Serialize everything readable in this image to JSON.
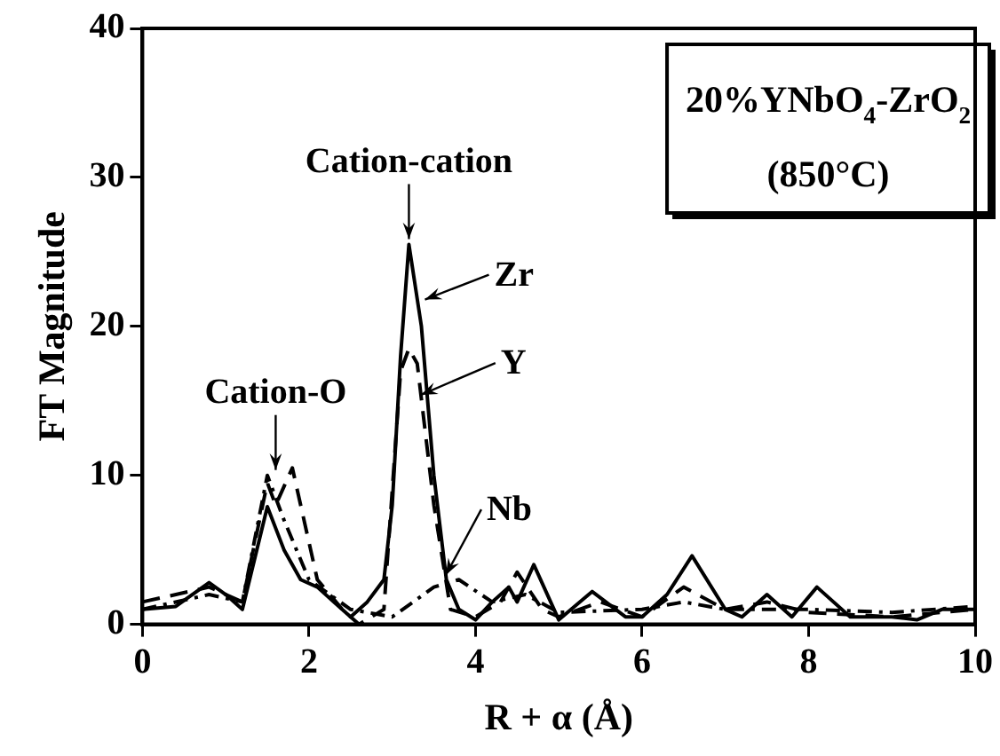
{
  "chart_data": {
    "type": "line",
    "title": "20%YNbO$_{4}$-ZrO$_{2}$",
    "subtitle": "(850°C)",
    "xlabel": "R + α (Å)",
    "ylabel": "FT Magnitude",
    "xlim": [
      0,
      10
    ],
    "xticks": [
      0,
      2,
      4,
      6,
      8,
      10
    ],
    "ylim": [
      0,
      40
    ],
    "yticks": [
      0,
      10,
      20,
      30,
      40
    ],
    "grid": false,
    "legend": false,
    "marker": "none",
    "series": [
      {
        "color": "#000000",
        "line_style": "solid",
        "x": [
          0,
          0.4,
          0.8,
          1.0,
          1.2,
          1.5,
          1.7,
          1.9,
          2.1,
          2.3,
          2.5,
          2.7,
          2.9,
          3.0,
          3.1,
          3.2,
          3.35,
          3.5,
          3.65,
          3.8,
          4.0,
          4.2,
          4.4,
          4.5,
          4.7,
          5.0,
          5.4,
          5.8,
          6.0,
          6.3,
          6.6,
          7.0,
          7.2,
          7.5,
          7.8,
          8.1,
          8.5,
          9.0,
          9.3,
          9.6,
          10
        ],
        "values": [
          1,
          1.2,
          2.8,
          2,
          1,
          7.9,
          5,
          3,
          2.5,
          1.5,
          0.5,
          1.5,
          3,
          8,
          18,
          25.5,
          20,
          10,
          3,
          1,
          0.3,
          1.5,
          2.5,
          1.5,
          4,
          0.3,
          2.2,
          0.5,
          0.5,
          2,
          4.6,
          1,
          0.5,
          2,
          0.5,
          2.5,
          0.5,
          0.5,
          0.3,
          1,
          1
        ]
      },
      {
        "color": "#000000",
        "line_style": "dashed",
        "x": [
          0,
          0.8,
          1.2,
          1.5,
          1.6,
          1.8,
          2.1,
          2.4,
          2.6,
          2.9,
          3.1,
          3.2,
          3.3,
          3.5,
          3.7,
          4.0,
          4.3,
          4.5,
          4.8,
          5.0,
          5.5,
          6.0,
          6.5,
          7.0,
          7.5,
          8,
          9,
          10
        ],
        "values": [
          1.5,
          2.5,
          1.5,
          9.5,
          8,
          10.5,
          3,
          1,
          0,
          1,
          17,
          18.5,
          17.5,
          8,
          1,
          0.5,
          1.5,
          3.5,
          1,
          0.5,
          1.5,
          0.5,
          2.5,
          1,
          1.5,
          0.8,
          0.5,
          1
        ]
      },
      {
        "color": "#000000",
        "line_style": "dotted",
        "x": [
          0,
          0.8,
          1.2,
          1.5,
          1.7,
          2.0,
          2.5,
          3.0,
          3.5,
          3.8,
          4.2,
          4.6,
          5.0,
          6.0,
          6.5,
          7,
          8,
          9,
          10
        ],
        "values": [
          1,
          2,
          1.5,
          10,
          7,
          3,
          1,
          0.5,
          2.5,
          3,
          1.5,
          2,
          0.8,
          1,
          1.5,
          1,
          1,
          0.8,
          1.2
        ]
      }
    ],
    "annotations": [
      {
        "text": "Cation-cation",
        "x": 3.2,
        "y": 25.5
      },
      {
        "text": "Cation-O",
        "x": 1.6,
        "y": 10
      },
      {
        "text": "Zr",
        "x": 3.35,
        "y": 21.8
      },
      {
        "text": "Y",
        "x": 3.3,
        "y": 15.4
      },
      {
        "text": "Nb",
        "x": 3.6,
        "y": 3.3
      }
    ]
  }
}
